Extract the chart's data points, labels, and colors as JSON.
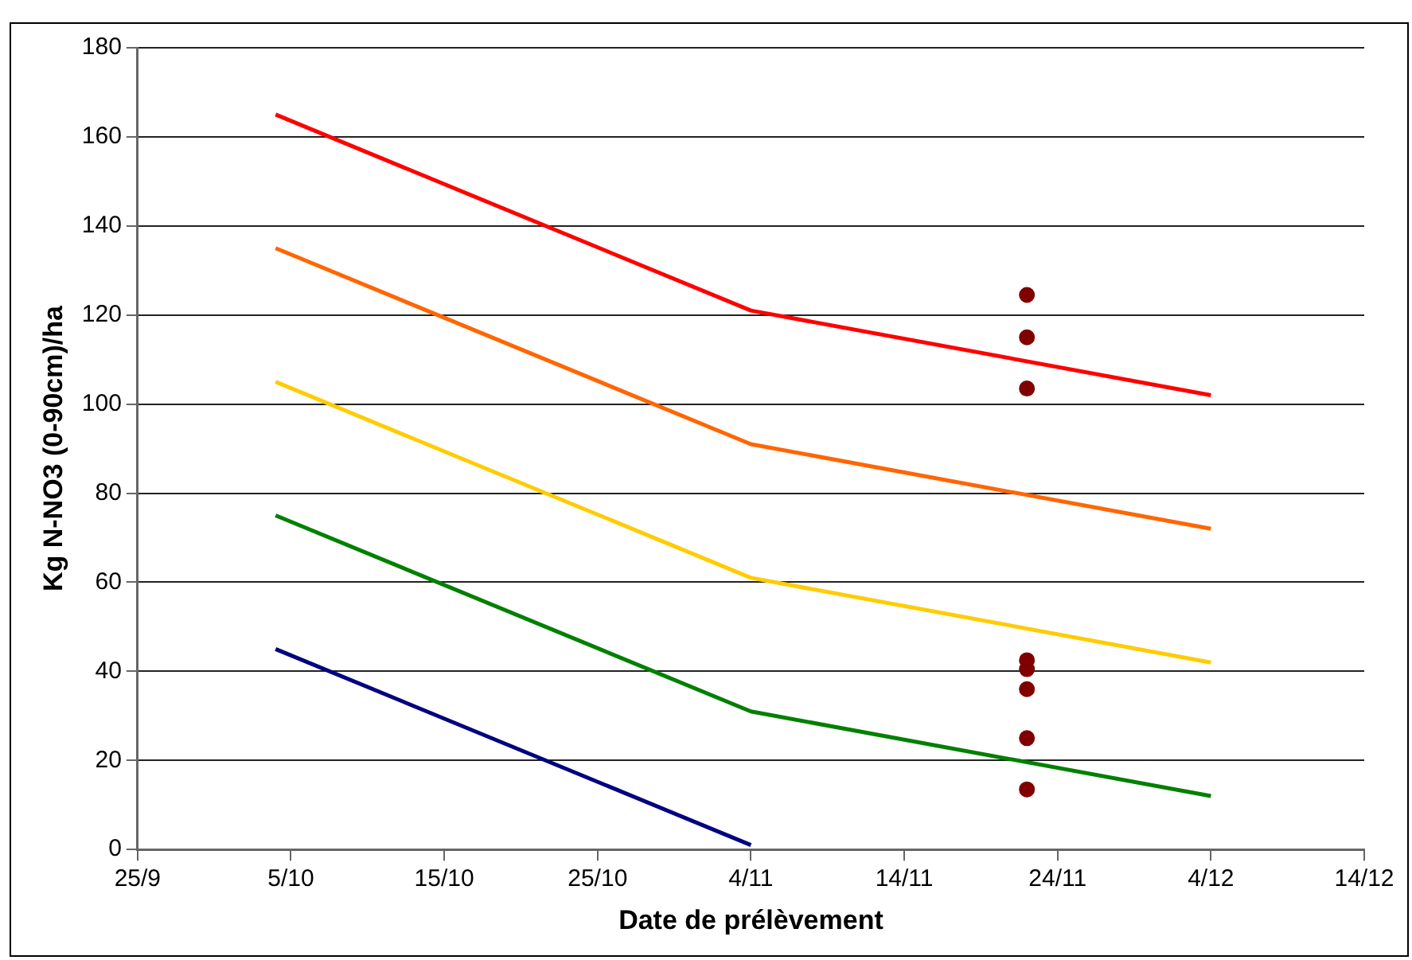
{
  "chart_data": {
    "type": "line",
    "xlabel": "Date de prélèvement",
    "ylabel": "Kg N-NO3 (0-90cm)/ha",
    "x": [
      "--10-04",
      "--11-04",
      "--12-04"
    ],
    "series": [
      {
        "color": "#ff0000",
        "values": [
          165,
          121,
          102
        ]
      },
      {
        "color": "#ff6600",
        "values": [
          135,
          91,
          72
        ]
      },
      {
        "color": "#ffcc00",
        "values": [
          105,
          61,
          42
        ]
      },
      {
        "color": "#008000",
        "values": [
          75,
          31,
          12
        ]
      },
      {
        "color": "#000080",
        "values": [
          45,
          1,
          null
        ]
      },
      {
        "type": "scatter",
        "color": "#800000",
        "marker": "circle",
        "x": [
          "--11-22",
          "--11-22",
          "--11-22",
          "--11-22",
          "--11-22",
          "--11-22",
          "--11-22",
          "--11-22"
        ],
        "values": [
          124.5,
          115,
          103.5,
          42.5,
          40.5,
          36,
          25,
          13.5
        ]
      }
    ],
    "xlim": [
      "--09-25",
      "--12-14"
    ],
    "xticks": [
      {
        "value": "--09-25",
        "label": "25/9"
      },
      {
        "value": "--10-05",
        "label": "5/10"
      },
      {
        "value": "--10-15",
        "label": "15/10"
      },
      {
        "value": "--10-25",
        "label": "25/10"
      },
      {
        "value": "--11-04",
        "label": "4/11"
      },
      {
        "value": "--11-14",
        "label": "14/11"
      },
      {
        "value": "--11-24",
        "label": "24/11"
      },
      {
        "value": "--12-04",
        "label": "4/12"
      },
      {
        "value": "--12-14",
        "label": "14/12"
      }
    ],
    "ylim": [
      0,
      180
    ],
    "yticks": [
      0,
      20,
      40,
      60,
      80,
      100,
      120,
      140,
      160,
      180
    ],
    "grid": "y",
    "legend": false,
    "marker": "none",
    "line_style": "solid"
  }
}
